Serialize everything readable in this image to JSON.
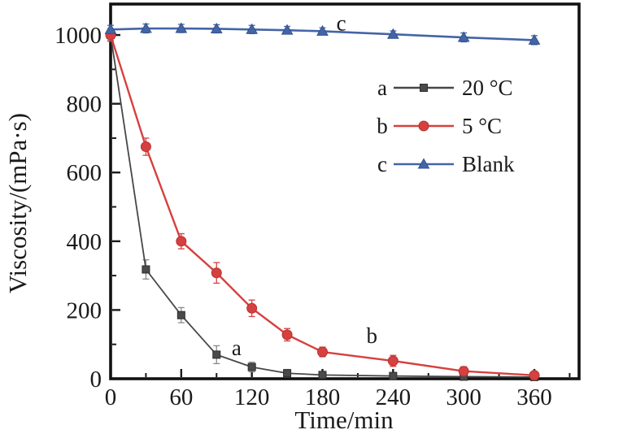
{
  "figure": {
    "background": "#ffffff",
    "axis_color": "#1a1a1a"
  },
  "chart_data": {
    "type": "line",
    "title": "",
    "xlabel": "Time/min",
    "ylabel": "Viscosity/(mPa·s)",
    "xlim": [
      0,
      398
    ],
    "ylim": [
      0,
      1090
    ],
    "grid": false,
    "legend_position": "inside-upper-right",
    "x": [
      0,
      30,
      60,
      90,
      120,
      150,
      180,
      240,
      300,
      360
    ],
    "x_major_ticks": [
      0,
      60,
      120,
      180,
      240,
      300,
      360
    ],
    "x_minor_ticks": [
      30,
      90,
      150,
      210,
      270,
      330,
      390
    ],
    "y_major_ticks": [
      0,
      200,
      400,
      600,
      800,
      1000
    ],
    "y_minor_ticks": [
      100,
      300,
      500,
      700,
      900
    ],
    "series": [
      {
        "tag": "a",
        "name": "20 °C",
        "marker": "square",
        "color": "#474747",
        "marker_fill": "#4a4a4a",
        "marker_edge": "#2e2e2e",
        "error_color": "#8a8a8a",
        "line_width": 1.8,
        "values": [
          1000,
          318,
          185,
          70,
          34,
          16,
          11,
          8,
          6,
          5
        ],
        "errors": [
          16,
          28,
          22,
          26,
          14,
          11,
          9,
          8,
          7,
          5
        ]
      },
      {
        "tag": "b",
        "name": "5 °C",
        "marker": "circle",
        "color": "#d6403f",
        "marker_fill": "#d6403f",
        "marker_edge": "#b23434",
        "error_color": "#d6403f",
        "line_width": 2.4,
        "values": [
          1000,
          675,
          400,
          308,
          205,
          128,
          78,
          52,
          22,
          10
        ],
        "errors": [
          18,
          25,
          22,
          30,
          24,
          18,
          14,
          16,
          13,
          9
        ]
      },
      {
        "tag": "c",
        "name": "Blank",
        "marker": "triangle",
        "color": "#4365a7",
        "marker_fill": "#4365a7",
        "marker_edge": "#33518a",
        "error_color": "#4365a7",
        "line_width": 2.6,
        "values": [
          1016,
          1019,
          1019,
          1018,
          1016,
          1014,
          1011,
          1002,
          993,
          985
        ],
        "errors": [
          12,
          13,
          12,
          12,
          12,
          11,
          10,
          10,
          13,
          13
        ]
      }
    ],
    "annotations": [
      {
        "text": "a",
        "x": 107,
        "y": 90
      },
      {
        "text": "b",
        "x": 222,
        "y": 125
      },
      {
        "text": "c",
        "x": 196,
        "y": 1035
      }
    ]
  }
}
